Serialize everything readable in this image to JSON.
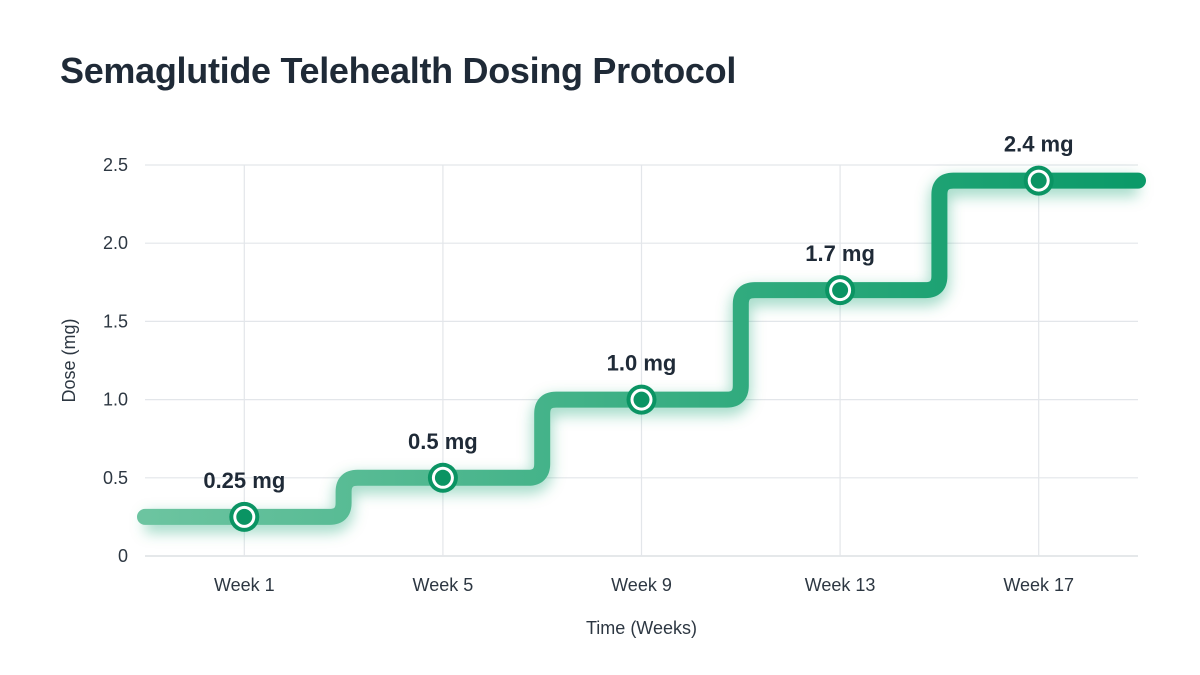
{
  "chart_data": {
    "type": "line",
    "title": "Semaglutide Telehealth Dosing Protocol",
    "xlabel": "Time (Weeks)",
    "ylabel": "Dose (mg)",
    "step": true,
    "x": [
      1,
      5,
      9,
      13,
      17
    ],
    "x_tick_labels": [
      "Week 1",
      "Week 5",
      "Week 9",
      "Week 13",
      "Week 17"
    ],
    "values": [
      0.25,
      0.5,
      1.0,
      1.7,
      2.4
    ],
    "data_labels": [
      "0.25 mg",
      "0.5 mg",
      "1.0 mg",
      "1.7 mg",
      "2.4 mg"
    ],
    "xlim": [
      -1,
      19
    ],
    "ylim": [
      0,
      2.5
    ],
    "y_ticks": [
      0,
      0.5,
      1.0,
      1.5,
      2.0,
      2.5
    ],
    "y_tick_labels": [
      "0",
      "0.5",
      "1.0",
      "1.5",
      "2.0",
      "2.5"
    ],
    "grid": true,
    "colors": {
      "line_start": "#6cc4a0",
      "line_end": "#0a9a68",
      "marker": "#0a9463",
      "grid": "#e3e6ea"
    }
  }
}
